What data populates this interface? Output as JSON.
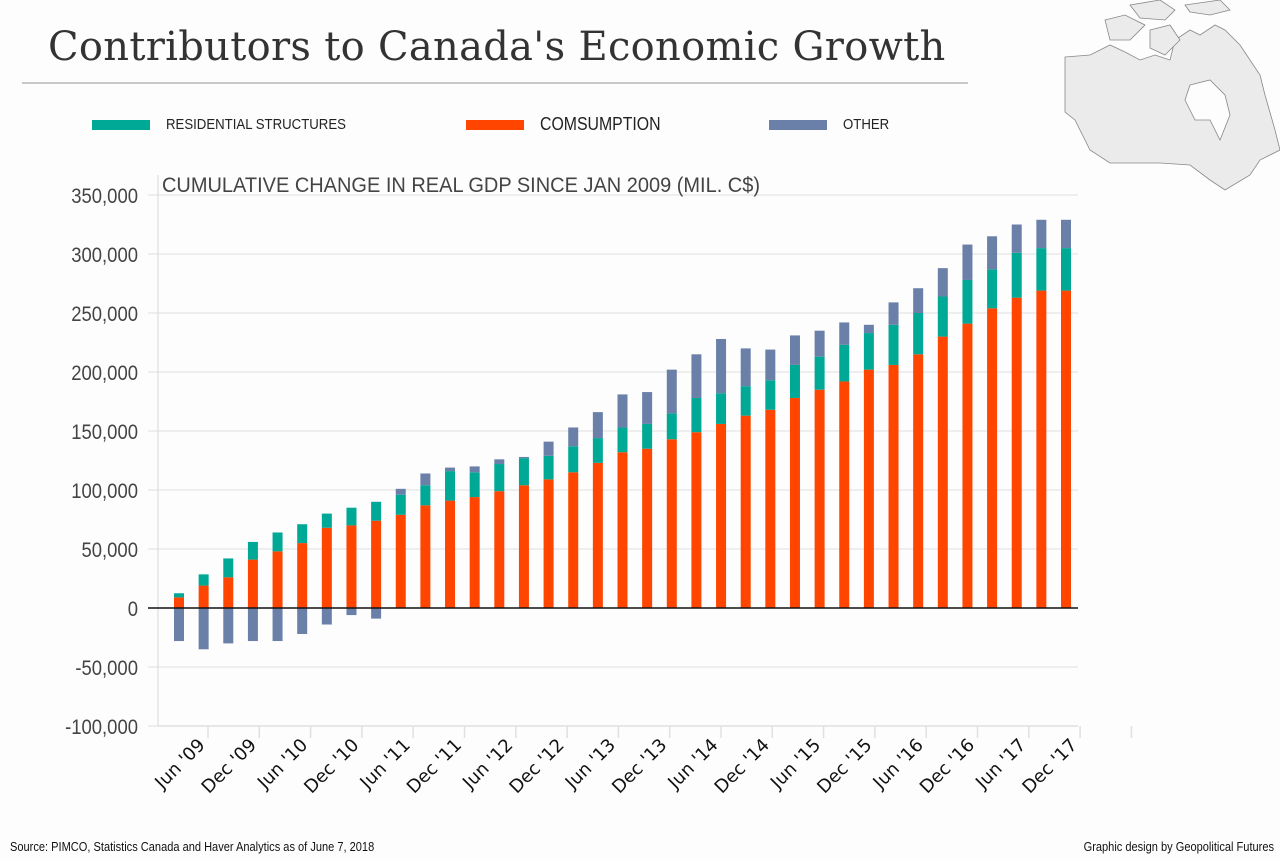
{
  "header": {
    "title": "Contributors to Canada's Economic Growth"
  },
  "footer": {
    "source": "Source: PIMCO, Statistics Canada and Haver Analytics as of June 7, 2018",
    "credit": "Graphic design by Geopolitical Futures"
  },
  "map": {
    "icon": "canada-map-icon"
  },
  "chart_data": {
    "type": "bar",
    "stacked": true,
    "title": "CUMULATIVE CHANGE IN REAL GDP SINCE JAN 2009 (MIL. C$)",
    "xlabel": "",
    "ylabel": "",
    "ylim": [
      -100000,
      350000
    ],
    "yticks": [
      350000,
      300000,
      250000,
      200000,
      150000,
      100000,
      50000,
      0,
      -50000,
      -100000
    ],
    "ytick_labels": [
      "350,000",
      "300,000",
      "250,000",
      "200,000",
      "150,000",
      "100,000",
      "50,000",
      "0",
      "-50,000",
      "-100,000"
    ],
    "grid": true,
    "legend_position": "top",
    "xtick_labels": [
      "Jun '09",
      "Dec '09",
      "Jun '10",
      "Dec '10",
      "Jun '11",
      "Dec '11",
      "Jun '12",
      "Dec '12",
      "Jun '13",
      "Dec '13",
      "Jun '14",
      "Dec '14",
      "Jun '15",
      "Dec '15",
      "Jun '16",
      "Dec '16",
      "Jun '17",
      "Dec '17"
    ],
    "bar_count": 37,
    "series": [
      {
        "name": "COMSUMPTION",
        "color": "#ff4500",
        "values": [
          9000,
          19000,
          26000,
          41000,
          48000,
          55000,
          68000,
          70000,
          74000,
          79000,
          87000,
          91000,
          94000,
          99000,
          104000,
          109000,
          115000,
          123000,
          132000,
          135000,
          143000,
          149000,
          156000,
          163000,
          168000,
          178000,
          185000,
          192000,
          202000,
          206000,
          215000,
          230000,
          241000,
          254000,
          263000,
          269000,
          269000
        ]
      },
      {
        "name": "RESIDENTIAL STRUCTURES",
        "color": "#00a896",
        "values": [
          3500,
          9500,
          16000,
          15000,
          16000,
          16000,
          12000,
          15000,
          16000,
          17000,
          17000,
          25000,
          21000,
          23000,
          23000,
          20000,
          22000,
          21000,
          21000,
          21000,
          22000,
          29000,
          26000,
          25000,
          25000,
          28000,
          28000,
          31000,
          31000,
          34000,
          35000,
          34000,
          37000,
          33000,
          38000,
          36000,
          36000
        ]
      },
      {
        "name": "OTHER",
        "color": "#6a80a8",
        "values": [
          -28000,
          -35000,
          -30000,
          -28000,
          -28000,
          -22000,
          -14000,
          -6000,
          -9000,
          5000,
          10000,
          3000,
          5000,
          4000,
          1000,
          12000,
          16000,
          22000,
          28000,
          27000,
          37000,
          37000,
          46000,
          32000,
          26000,
          25000,
          22000,
          19000,
          7000,
          19000,
          21000,
          24000,
          30000,
          28000,
          24000,
          24000,
          24000
        ]
      }
    ],
    "legend": [
      {
        "label": "RESIDENTIAL STRUCTURES",
        "color": "#00a896"
      },
      {
        "label": "COMSUMPTION",
        "color": "#ff4500"
      },
      {
        "label": "OTHER",
        "color": "#6a80a8"
      }
    ]
  }
}
